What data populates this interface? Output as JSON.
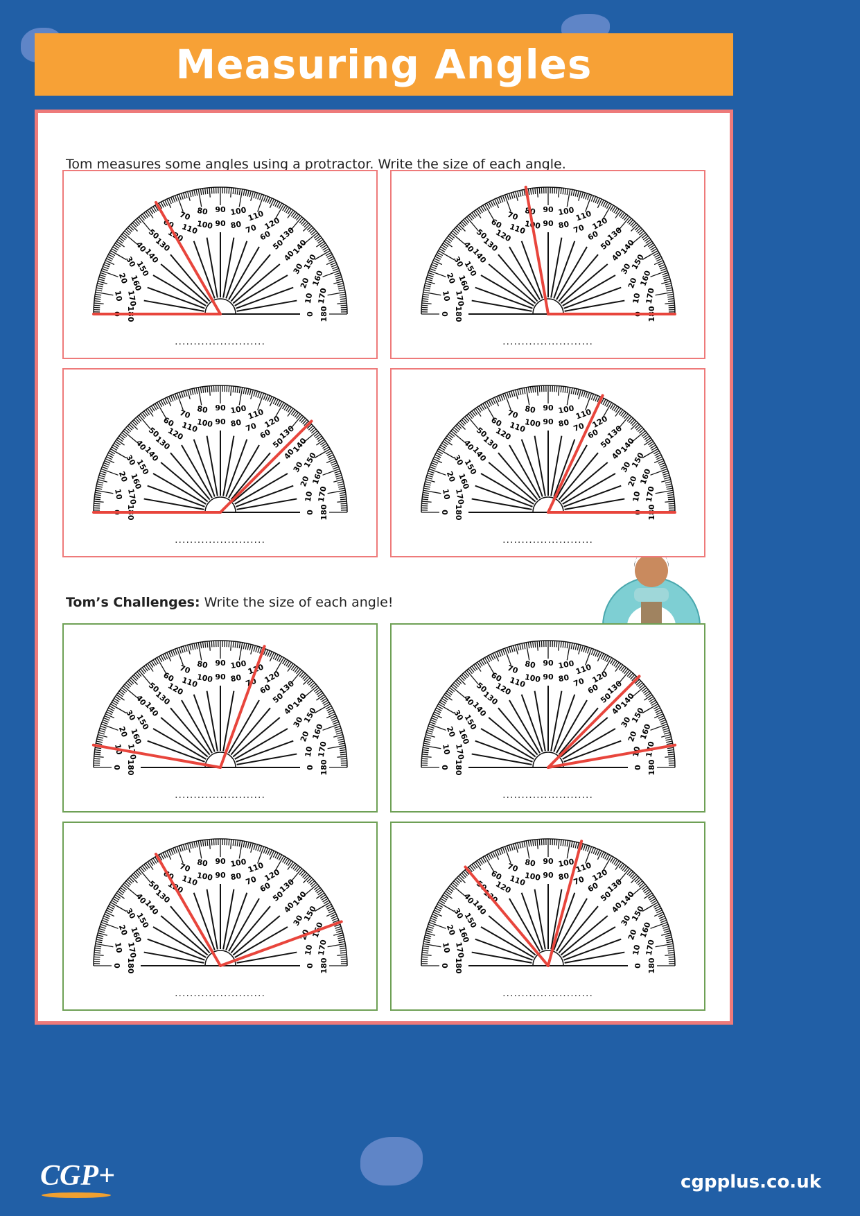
{
  "title": "Measuring Angles",
  "section1": {
    "instruction": "Tom measures some angles using a protractor. Write the size of each angle.",
    "items": [
      {
        "rays": [
          180,
          120
        ]
      },
      {
        "rays": [
          0,
          100
        ]
      },
      {
        "rays": [
          180,
          45
        ]
      },
      {
        "rays": [
          0,
          65
        ]
      }
    ]
  },
  "section2": {
    "heading": "Tom’s Challenges:",
    "instruction": " Write the size of each angle!",
    "items": [
      {
        "rays": [
          170,
          70
        ]
      },
      {
        "rays": [
          10,
          45
        ]
      },
      {
        "rays": [
          120,
          20
        ]
      },
      {
        "rays": [
          130,
          75
        ]
      }
    ]
  },
  "answer_blank": "........................",
  "footer": {
    "logo": "CGP+",
    "website": "cgpplus.co.uk"
  },
  "colors": {
    "background": "#215fa6",
    "title_bar": "#f7a136",
    "border_pink": "#ee7a7a",
    "border_green": "#6ea055",
    "ray": "#e8453c"
  }
}
